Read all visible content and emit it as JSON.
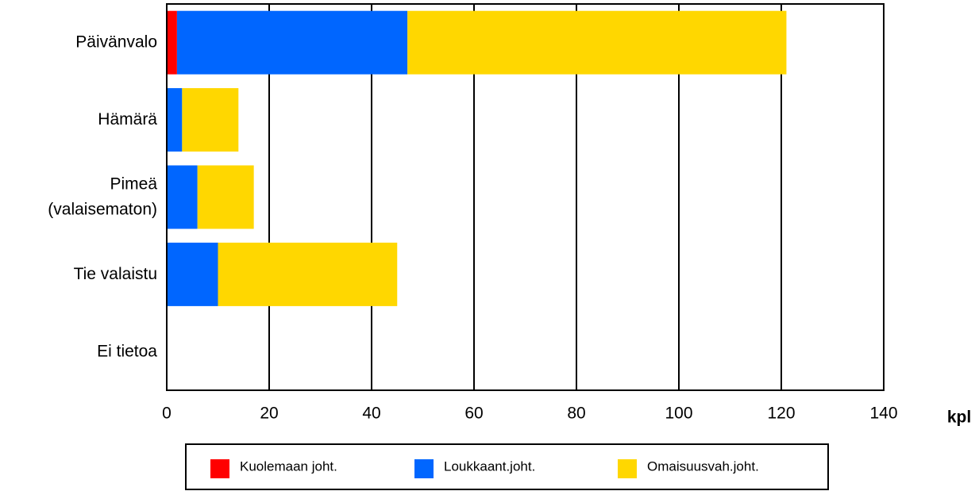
{
  "chart_data": {
    "type": "stacked-barh",
    "categories": [
      "Päivänvalo",
      "Hämärä",
      "Pimeä\n(valaisematon)",
      "Tie valaistu",
      "Ei tietoa"
    ],
    "series": [
      {
        "name": "Kuolemaan joht.",
        "color": "#ff0000",
        "values": [
          2,
          0,
          0,
          0,
          0
        ]
      },
      {
        "name": "Loukkaant.joht.",
        "color": "#0066ff",
        "values": [
          45,
          3,
          6,
          10,
          0
        ]
      },
      {
        "name": "Omaisuusvah.joht.",
        "color": "#ffd700",
        "values": [
          74,
          11,
          11,
          35,
          0
        ]
      }
    ],
    "x_label": "kpl",
    "xlim": [
      0,
      140
    ],
    "xticks": [
      0,
      20,
      40,
      60,
      80,
      100,
      120,
      140
    ],
    "grid": true,
    "legend": "bottom"
  }
}
